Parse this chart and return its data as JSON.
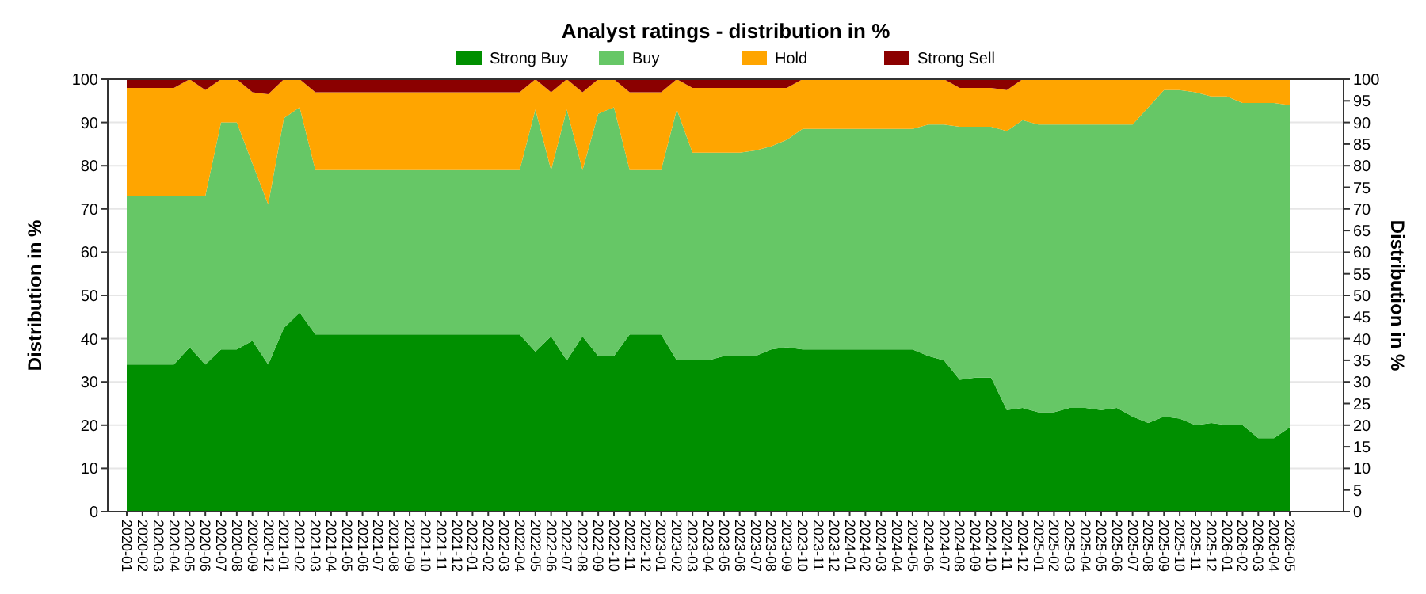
{
  "chart_data": {
    "type": "area",
    "stacked": true,
    "title": "Analyst ratings - distribution in %",
    "ylabel": "Distribution in %",
    "y2label": "Distribution in %",
    "categories": [
      "2020-01",
      "2020-02",
      "2020-03",
      "2020-04",
      "2020-05",
      "2020-06",
      "2020-07",
      "2020-08",
      "2020-09",
      "2020-12",
      "2021-01",
      "2021-02",
      "2021-03",
      "2021-04",
      "2021-05",
      "2021-06",
      "2021-07",
      "2021-08",
      "2021-09",
      "2021-10",
      "2021-11",
      "2021-12",
      "2022-01",
      "2022-02",
      "2022-03",
      "2022-04",
      "2022-05",
      "2022-06",
      "2022-07",
      "2022-08",
      "2022-09",
      "2022-10",
      "2022-11",
      "2022-12",
      "2023-01",
      "2023-02",
      "2023-03",
      "2023-04",
      "2023-05",
      "2023-06",
      "2023-07",
      "2023-08",
      "2023-09",
      "2023-10",
      "2023-11",
      "2023-12",
      "2024-01",
      "2024-02",
      "2024-03",
      "2024-04",
      "2024-05",
      "2024-06",
      "2024-07",
      "2024-08",
      "2024-09",
      "2024-10",
      "2024-11",
      "2024-12",
      "2025-01",
      "2025-02",
      "2025-03",
      "2025-04",
      "2025-05",
      "2025-06",
      "2025-07",
      "2025-08",
      "2025-09",
      "2025-10",
      "2025-11",
      "2025-12",
      "2026-01",
      "2026-02",
      "2026-03",
      "2026-04",
      "2026-05"
    ],
    "series": [
      {
        "name": "Strong Buy",
        "color": "#008f00",
        "values": [
          34,
          34,
          34,
          34,
          38,
          34,
          37.5,
          37.5,
          39.5,
          34,
          42.5,
          46,
          41,
          41,
          41,
          41,
          41,
          41,
          41,
          41,
          41,
          41,
          41,
          41,
          41,
          41,
          37,
          40.5,
          35,
          40.5,
          36,
          36,
          41,
          41,
          41,
          35,
          35,
          35,
          36,
          36,
          36,
          37.5,
          38,
          37.5,
          37.5,
          37.5,
          37.5,
          37.5,
          37.5,
          37.5,
          37.5,
          36,
          35,
          30.5,
          31,
          31,
          23.5,
          24,
          23,
          23,
          24,
          24,
          23.5,
          24,
          22,
          20.5,
          22,
          21.5,
          20,
          20.5,
          20,
          20,
          17,
          17,
          19.5
        ]
      },
      {
        "name": "Buy",
        "color": "#66c766",
        "values": [
          39,
          39,
          39,
          39,
          35,
          39,
          52.5,
          52.5,
          41,
          37,
          48.5,
          47.5,
          38,
          38,
          38,
          38,
          38,
          38,
          38,
          38,
          38,
          38,
          38,
          38,
          38,
          38,
          56,
          38.5,
          58,
          38.5,
          56,
          57.5,
          38,
          38,
          38,
          58,
          48,
          48,
          47,
          47,
          47.5,
          47,
          48,
          51,
          51,
          51,
          51,
          51,
          51,
          51,
          51,
          53.5,
          54.5,
          58.5,
          58,
          58,
          64.5,
          66.5,
          66.5,
          66.5,
          65.5,
          65.5,
          66,
          65.5,
          67.5,
          73,
          75.5,
          76,
          77,
          75.5,
          76,
          74.5,
          77.5,
          77.5,
          74.5
        ]
      },
      {
        "name": "Hold",
        "color": "#ffa500",
        "values": [
          25,
          25,
          25,
          25,
          27,
          24.5,
          10,
          10,
          16.5,
          25.5,
          9,
          6.5,
          18,
          18,
          18,
          18,
          18,
          18,
          18,
          18,
          18,
          18,
          18,
          18,
          18,
          18,
          7,
          18,
          7,
          18,
          8,
          6.5,
          18,
          18,
          18,
          7,
          15,
          15,
          15,
          15,
          14.5,
          13.5,
          12,
          11.5,
          11.5,
          11.5,
          11.5,
          11.5,
          11.5,
          11.5,
          11.5,
          10.5,
          10.5,
          9,
          9,
          9,
          9.5,
          9.5,
          10.5,
          10.5,
          10.5,
          10.5,
          10.5,
          10.5,
          10.5,
          6.5,
          2.5,
          2.5,
          3,
          4,
          4,
          5.5,
          5.5,
          5.5,
          6
        ]
      },
      {
        "name": "Strong Sell",
        "color": "#8b0000",
        "values": [
          2,
          2,
          2,
          2,
          0,
          2.5,
          0,
          0,
          3,
          3.5,
          0,
          0,
          3,
          3,
          3,
          3,
          3,
          3,
          3,
          3,
          3,
          3,
          3,
          3,
          3,
          3,
          0,
          3,
          0,
          3,
          0,
          0,
          3,
          3,
          3,
          0,
          2,
          2,
          2,
          2,
          2,
          2,
          2,
          0,
          0,
          0,
          0,
          0,
          0,
          0,
          0,
          0,
          0,
          2,
          2,
          2,
          2.5,
          0,
          0,
          0,
          0,
          0,
          0,
          0,
          0,
          0,
          0,
          0,
          0,
          0,
          0,
          0,
          0,
          0,
          0
        ]
      }
    ],
    "ylim": [
      0,
      100
    ],
    "yticks": [
      0,
      10,
      20,
      30,
      40,
      50,
      60,
      70,
      80,
      90,
      100
    ],
    "y2lim": [
      0,
      100
    ],
    "y2ticks": [
      0,
      5,
      10,
      15,
      20,
      25,
      30,
      35,
      40,
      45,
      50,
      55,
      60,
      65,
      70,
      75,
      80,
      85,
      90,
      95,
      100
    ],
    "grid": "y",
    "legend": "top"
  }
}
